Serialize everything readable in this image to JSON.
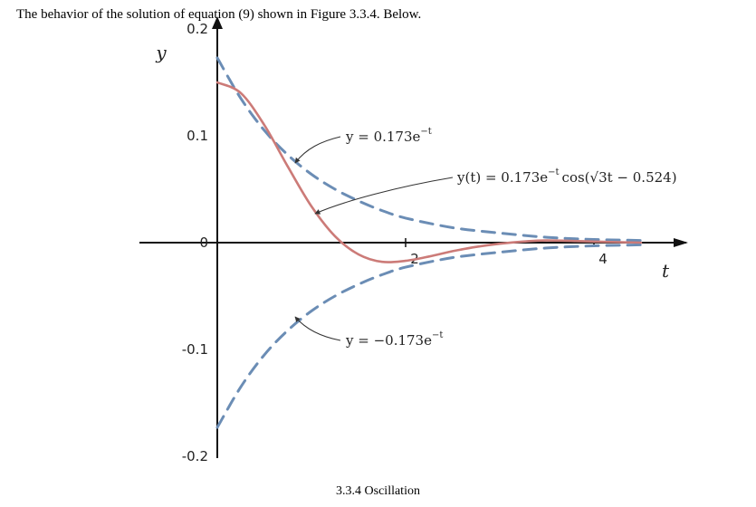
{
  "header": {
    "text": "The behavior of the solution of equation (9) shown in Figure 3.3.4. Below."
  },
  "footer": {
    "text": "3.3.4 Oscillation"
  },
  "chart_data": {
    "type": "line",
    "xlabel": "t",
    "ylabel": "y",
    "xlim": [
      0,
      4.5
    ],
    "ylim": [
      -0.2,
      0.2
    ],
    "x_ticks": [
      {
        "value": 2,
        "label": "2"
      },
      {
        "value": 4,
        "label": "4"
      }
    ],
    "y_ticks": [
      {
        "value": 0.2,
        "label": "0.2"
      },
      {
        "value": 0.1,
        "label": "0.1"
      },
      {
        "value": 0,
        "label": "0"
      },
      {
        "value": -0.1,
        "label": "-0.1"
      },
      {
        "value": -0.2,
        "label": "-0.2"
      }
    ],
    "grid": false,
    "series": [
      {
        "key": "upper",
        "amplitude": 0.173,
        "style": "dashed",
        "color": "#6b8db5",
        "x": [
          0,
          0.25,
          0.5,
          0.75,
          1,
          1.25,
          1.5,
          1.75,
          2,
          2.5,
          3,
          3.5,
          4,
          4.5
        ],
        "y": [
          0.173,
          0.135,
          0.105,
          0.082,
          0.064,
          0.05,
          0.039,
          0.03,
          0.023,
          0.014,
          0.009,
          0.005,
          0.003,
          0.002
        ]
      },
      {
        "key": "lower",
        "amplitude": -0.173,
        "style": "dashed",
        "color": "#6b8db5",
        "x": [
          0,
          0.25,
          0.5,
          0.75,
          1,
          1.25,
          1.5,
          1.75,
          2,
          2.5,
          3,
          3.5,
          4,
          4.5
        ],
        "y": [
          -0.173,
          -0.135,
          -0.105,
          -0.082,
          -0.064,
          -0.05,
          -0.039,
          -0.03,
          -0.023,
          -0.014,
          -0.009,
          -0.005,
          -0.003,
          -0.002
        ]
      },
      {
        "key": "solution",
        "style": "solid",
        "color": "#cc7b78",
        "x": [
          0,
          0.25,
          0.5,
          0.75,
          1,
          1.25,
          1.5,
          1.75,
          2,
          2.25,
          2.5,
          2.75,
          3,
          3.25,
          3.5,
          4,
          4.5
        ],
        "y": [
          0.15,
          0.14,
          0.11,
          0.071,
          0.034,
          0.006,
          -0.011,
          -0.018,
          -0.017,
          -0.013,
          -0.008,
          -0.004,
          -0.001,
          0.001,
          0.002,
          0.001,
          0.0
        ]
      }
    ],
    "annotations": [
      {
        "key": "upper",
        "base": "y = 0.173e",
        "sup": "−t"
      },
      {
        "key": "solution",
        "base": "y(t) = 0.173e",
        "sup": "−t",
        "tail": "cos(√3t − 0.524)"
      },
      {
        "key": "lower",
        "base": "y = −0.173e",
        "sup": "−t"
      }
    ]
  }
}
